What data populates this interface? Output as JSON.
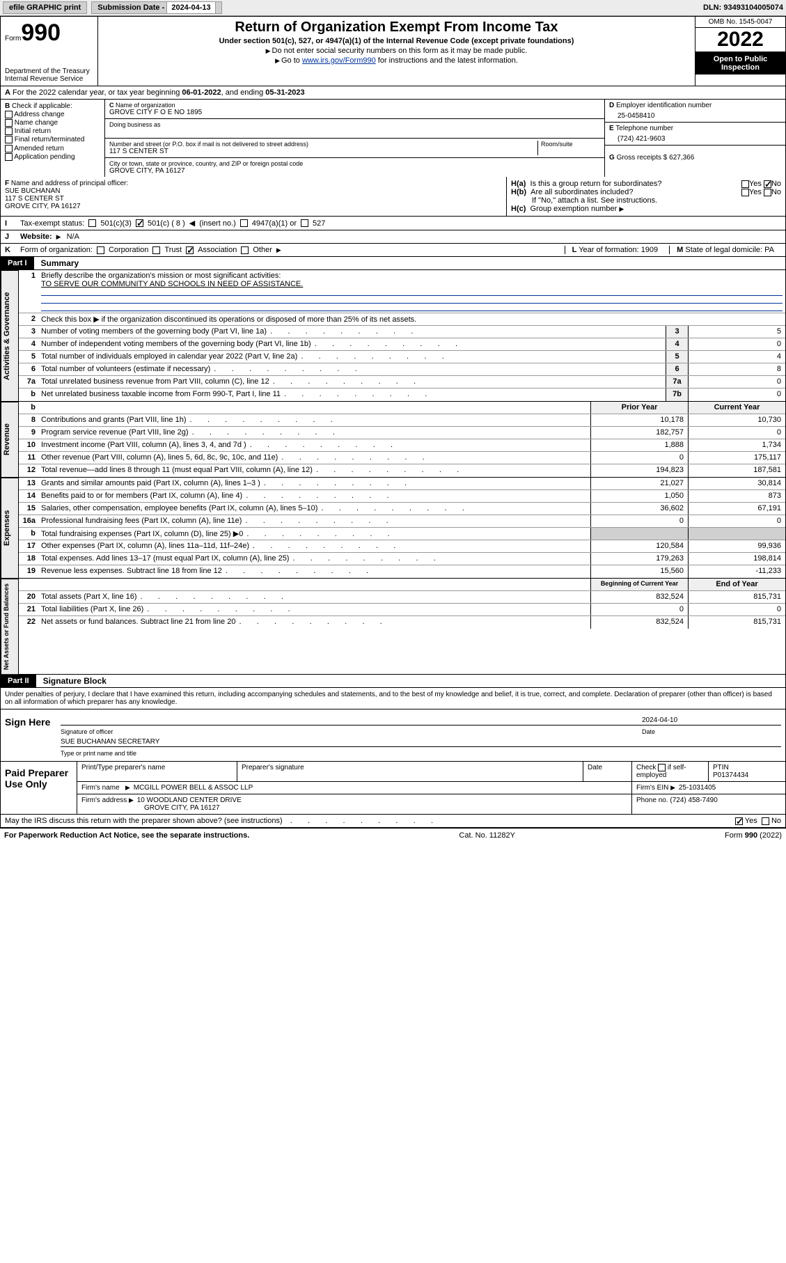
{
  "topbar": {
    "efile": "efile GRAPHIC print",
    "subdate_label": "Submission Date - ",
    "subdate": "2024-04-13",
    "dln": "DLN: 93493104005074"
  },
  "header": {
    "form_label": "Form",
    "form_no": "990",
    "dept": "Department of the Treasury",
    "irs": "Internal Revenue Service",
    "title": "Return of Organization Exempt From Income Tax",
    "sub1": "Under section 501(c), 527, or 4947(a)(1) of the Internal Revenue Code (except private foundations)",
    "sub2": "Do not enter social security numbers on this form as it may be made public.",
    "sub3a": "Go to ",
    "sub3link": "www.irs.gov/Form990",
    "sub3b": " for instructions and the latest information.",
    "omb": "OMB No. 1545-0047",
    "year": "2022",
    "pub": "Open to Public Inspection"
  },
  "A": {
    "text_a": "For the 2022 calendar year, or tax year beginning ",
    "begin": "06-01-2022",
    "text_b": ", and ending ",
    "end": "05-31-2023"
  },
  "B": {
    "label": "Check if applicable:",
    "addr": "Address change",
    "name": "Name change",
    "init": "Initial return",
    "final": "Final return/terminated",
    "amend": "Amended return",
    "app": "Application pending"
  },
  "C": {
    "name_lbl": "Name of organization",
    "name": "GROVE CITY F O E NO 1895",
    "dba_lbl": "Doing business as",
    "addr_lbl": "Number and street (or P.O. box if mail is not delivered to street address)",
    "room_lbl": "Room/suite",
    "addr": "117 S CENTER ST",
    "city_lbl": "City or town, state or province, country, and ZIP or foreign postal code",
    "city": "GROVE CITY, PA  16127"
  },
  "D": {
    "lbl": "Employer identification number",
    "val": "25-0458410"
  },
  "E": {
    "lbl": "Telephone number",
    "val": "(724) 421-9603"
  },
  "G": {
    "lbl": "Gross receipts $",
    "val": "627,366"
  },
  "F": {
    "lbl": "Name and address of principal officer:",
    "name": "SUE BUCHANAN",
    "addr1": "117 S CENTER ST",
    "addr2": "GROVE CITY, PA  16127"
  },
  "H": {
    "a": "Is this a group return for subordinates?",
    "b": "Are all subordinates included?",
    "bnote": "If \"No,\" attach a list. See instructions.",
    "c": "Group exemption number"
  },
  "I": {
    "lbl": "Tax-exempt status:",
    "o1": "501(c)(3)",
    "o2": "501(c) ( 8 )",
    "o2b": "(insert no.)",
    "o3": "4947(a)(1) or",
    "o4": "527"
  },
  "J": {
    "lbl": "Website:",
    "val": "N/A"
  },
  "K": {
    "lbl": "Form of organization:",
    "corp": "Corporation",
    "trust": "Trust",
    "assoc": "Association",
    "other": "Other"
  },
  "L": {
    "lbl": "Year of formation:",
    "val": "1909"
  },
  "M": {
    "lbl": "State of legal domicile:",
    "val": "PA"
  },
  "parts": {
    "p1": "Part I",
    "p1_title": "Summary",
    "p2": "Part II",
    "p2_title": "Signature Block"
  },
  "summary": {
    "q1": "Briefly describe the organization's mission or most significant activities:",
    "q1_val": "TO SERVE OUR COMMUNITY AND SCHOOLS IN NEED OF ASSISTANCE.",
    "q2": "Check this box ▶        if the organization discontinued its operations or disposed of more than 25% of its net assets.",
    "rows_gov": [
      {
        "n": "3",
        "t": "Number of voting members of the governing body (Part VI, line 1a)",
        "box": "3",
        "v": "5"
      },
      {
        "n": "4",
        "t": "Number of independent voting members of the governing body (Part VI, line 1b)",
        "box": "4",
        "v": "0"
      },
      {
        "n": "5",
        "t": "Total number of individuals employed in calendar year 2022 (Part V, line 2a)",
        "box": "5",
        "v": "4"
      },
      {
        "n": "6",
        "t": "Total number of volunteers (estimate if necessary)",
        "box": "6",
        "v": "8"
      },
      {
        "n": "7a",
        "t": "Total unrelated business revenue from Part VIII, column (C), line 12",
        "box": "7a",
        "v": "0"
      },
      {
        "n": "b",
        "t": "Net unrelated business taxable income from Form 990-T, Part I, line 11",
        "box": "7b",
        "v": "0"
      }
    ],
    "col_hdr_prior": "Prior Year",
    "col_hdr_curr": "Current Year",
    "rows_rev": [
      {
        "n": "8",
        "t": "Contributions and grants (Part VIII, line 1h)",
        "p": "10,178",
        "c": "10,730"
      },
      {
        "n": "9",
        "t": "Program service revenue (Part VIII, line 2g)",
        "p": "182,757",
        "c": "0"
      },
      {
        "n": "10",
        "t": "Investment income (Part VIII, column (A), lines 3, 4, and 7d )",
        "p": "1,888",
        "c": "1,734"
      },
      {
        "n": "11",
        "t": "Other revenue (Part VIII, column (A), lines 5, 6d, 8c, 9c, 10c, and 11e)",
        "p": "0",
        "c": "175,117"
      },
      {
        "n": "12",
        "t": "Total revenue—add lines 8 through 11 (must equal Part VIII, column (A), line 12)",
        "p": "194,823",
        "c": "187,581"
      }
    ],
    "rows_exp": [
      {
        "n": "13",
        "t": "Grants and similar amounts paid (Part IX, column (A), lines 1–3 )",
        "p": "21,027",
        "c": "30,814"
      },
      {
        "n": "14",
        "t": "Benefits paid to or for members (Part IX, column (A), line 4)",
        "p": "1,050",
        "c": "873"
      },
      {
        "n": "15",
        "t": "Salaries, other compensation, employee benefits (Part IX, column (A), lines 5–10)",
        "p": "36,602",
        "c": "67,191"
      },
      {
        "n": "16a",
        "t": "Professional fundraising fees (Part IX, column (A), line 11e)",
        "p": "0",
        "c": "0"
      },
      {
        "n": "b",
        "t": "Total fundraising expenses (Part IX, column (D), line 25) ▶0",
        "p": "",
        "c": "",
        "shade": true
      },
      {
        "n": "17",
        "t": "Other expenses (Part IX, column (A), lines 11a–11d, 11f–24e)",
        "p": "120,584",
        "c": "99,936"
      },
      {
        "n": "18",
        "t": "Total expenses. Add lines 13–17 (must equal Part IX, column (A), line 25)",
        "p": "179,263",
        "c": "198,814"
      },
      {
        "n": "19",
        "t": "Revenue less expenses. Subtract line 18 from line 12",
        "p": "15,560",
        "c": "-11,233"
      }
    ],
    "col_hdr_begin": "Beginning of Current Year",
    "col_hdr_end": "End of Year",
    "rows_bal": [
      {
        "n": "20",
        "t": "Total assets (Part X, line 16)",
        "p": "832,524",
        "c": "815,731"
      },
      {
        "n": "21",
        "t": "Total liabilities (Part X, line 26)",
        "p": "0",
        "c": "0"
      },
      {
        "n": "22",
        "t": "Net assets or fund balances. Subtract line 21 from line 20",
        "p": "832,524",
        "c": "815,731"
      }
    ]
  },
  "vtabs": {
    "gov": "Activities & Governance",
    "rev": "Revenue",
    "exp": "Expenses",
    "bal": "Net Assets or Fund Balances"
  },
  "sig": {
    "decl": "Under penalties of perjury, I declare that I have examined this return, including accompanying schedules and statements, and to the best of my knowledge and belief, it is true, correct, and complete. Declaration of preparer (other than officer) is based on all information of which preparer has any knowledge.",
    "sign_here": "Sign Here",
    "sig_officer": "Signature of officer",
    "date_lbl": "Date",
    "date_val": "2024-04-10",
    "name_title": "SUE BUCHANAN  SECRETARY",
    "name_lbl": "Type or print name and title"
  },
  "paid": {
    "title": "Paid Preparer Use Only",
    "h1": "Print/Type preparer's name",
    "h2": "Preparer's signature",
    "h3": "Date",
    "h4a": "Check",
    "h4b": "if self-employed",
    "h5": "PTIN",
    "ptin": "P01374434",
    "firm_name_lbl": "Firm's name",
    "firm_name": "MCGILL POWER BELL & ASSOC LLP",
    "firm_ein_lbl": "Firm's EIN",
    "firm_ein": "25-1031405",
    "firm_addr_lbl": "Firm's address",
    "firm_addr1": "10 WOODLAND CENTER DRIVE",
    "firm_addr2": "GROVE CITY, PA  16127",
    "phone_lbl": "Phone no.",
    "phone": "(724) 458-7490"
  },
  "discuss": {
    "q": "May the IRS discuss this return with the preparer shown above? (see instructions)",
    "yes": "Yes",
    "no": "No"
  },
  "footer": {
    "left": "For Paperwork Reduction Act Notice, see the separate instructions.",
    "mid": "Cat. No. 11282Y",
    "right": "Form 990 (2022)"
  }
}
